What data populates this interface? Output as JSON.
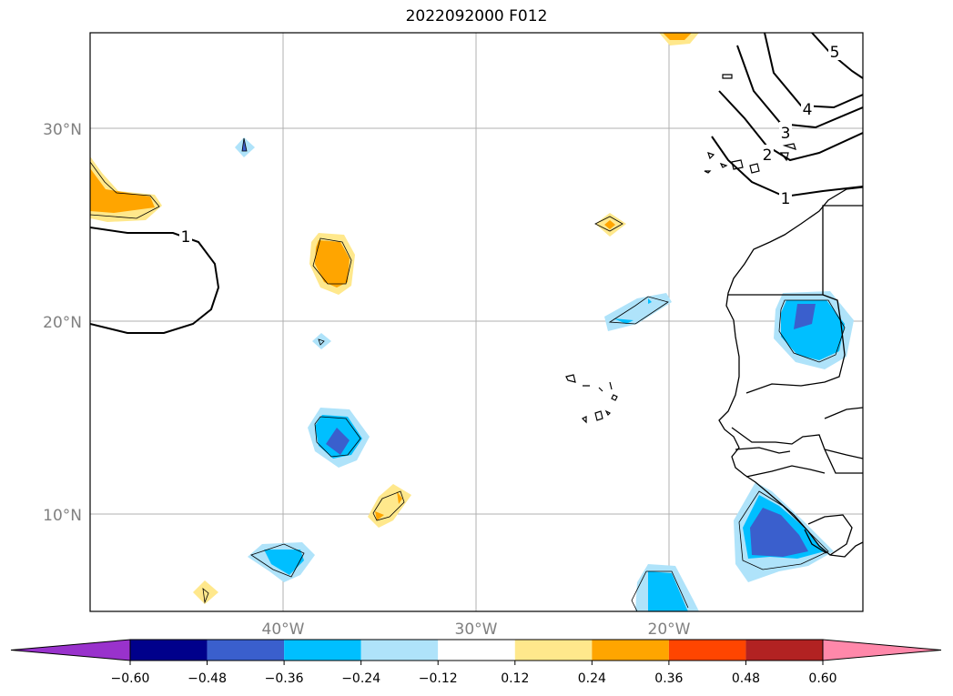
{
  "title": "2022092000 F012",
  "map": {
    "lat_labels": [
      "30°N",
      "20°N",
      "10°N"
    ],
    "lon_labels": [
      "40°W",
      "30°W",
      "20°W"
    ],
    "contour_labels": [
      "1",
      "1",
      "2",
      "3",
      "4",
      "5"
    ]
  },
  "colorbar": {
    "tick_labels": [
      "−0.60",
      "−0.48",
      "−0.36",
      "−0.24",
      "−0.12",
      "0.12",
      "0.24",
      "0.36",
      "0.48",
      "0.60"
    ],
    "colors": [
      "#9932cc",
      "#00008b",
      "#3a5fcd",
      "#00bfff",
      "#afe3fa",
      "#ffffff",
      "#ffe88c",
      "#ffa500",
      "#ff4500",
      "#b22222",
      "#ff88aa"
    ]
  },
  "colors": {
    "grid": "#b0b0b0",
    "coast": "#000000",
    "axis_label": "#808080"
  }
}
